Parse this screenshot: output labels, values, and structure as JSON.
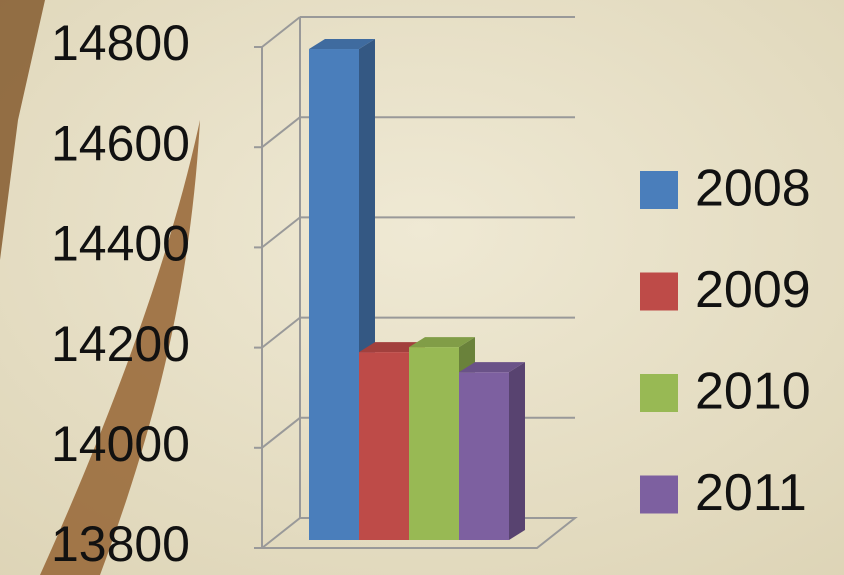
{
  "chart_data": {
    "type": "bar",
    "series": [
      {
        "name": "2008",
        "color": "#4a7ebb",
        "values": [
          14780
        ]
      },
      {
        "name": "2009",
        "color": "#be4b48",
        "values": [
          14175
        ]
      },
      {
        "name": "2010",
        "color": "#98b954",
        "values": [
          14185
        ]
      },
      {
        "name": "2011",
        "color": "#7d60a0",
        "values": [
          14135
        ]
      }
    ],
    "ylim": [
      13800,
      14800
    ],
    "yticks": [
      13800,
      14000,
      14200,
      14400,
      14600,
      14800
    ],
    "grid": true
  }
}
